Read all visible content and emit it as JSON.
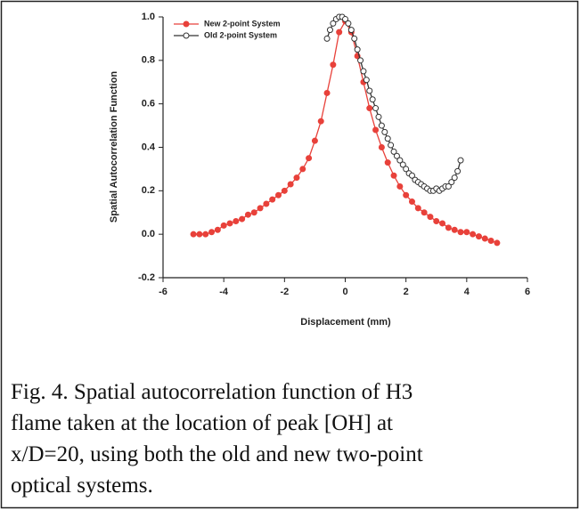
{
  "chart_data": {
    "type": "line",
    "xlabel": "Displacement (mm)",
    "ylabel": "Spatial Autocorrelation Function",
    "xlim": [
      -6,
      6
    ],
    "xticks": [
      -6,
      -4,
      -2,
      0,
      2,
      4,
      6
    ],
    "ylim": [
      -0.2,
      1.0
    ],
    "yticks": [
      -0.2,
      {
        "value": 0,
        "label": "0.0"
      },
      0.2,
      0.4,
      0.6,
      0.8,
      {
        "value": 1,
        "label": "1.0"
      }
    ],
    "legend": "upper left",
    "series": [
      {
        "name": "New 2-point System",
        "color": "#e8413a",
        "marker": "filled",
        "x": [
          -5,
          -4.8,
          -4.6,
          -4.4,
          -4.2,
          -4,
          -3.8,
          -3.6,
          -3.4,
          -3.2,
          -3,
          -2.8,
          -2.6,
          -2.4,
          -2.2,
          -2,
          -1.8,
          -1.6,
          -1.4,
          -1.2,
          -1,
          -0.8,
          -0.6,
          -0.4,
          -0.2,
          0,
          0.2,
          0.4,
          0.6,
          0.8,
          1,
          1.2,
          1.4,
          1.6,
          1.8,
          2,
          2.2,
          2.4,
          2.6,
          2.8,
          3,
          3.2,
          3.4,
          3.6,
          3.8,
          4,
          4.2,
          4.4,
          4.6,
          4.8,
          5
        ],
        "values": [
          0,
          0,
          0,
          0.01,
          0.02,
          0.04,
          0.05,
          0.06,
          0.07,
          0.09,
          0.1,
          0.12,
          0.14,
          0.16,
          0.18,
          0.2,
          0.23,
          0.26,
          0.3,
          0.35,
          0.43,
          0.52,
          0.65,
          0.78,
          0.93,
          0.98,
          0.93,
          0.82,
          0.7,
          0.58,
          0.48,
          0.4,
          0.33,
          0.27,
          0.22,
          0.18,
          0.15,
          0.12,
          0.1,
          0.08,
          0.06,
          0.05,
          0.03,
          0.02,
          0.01,
          0.01,
          0,
          -0.01,
          -0.02,
          -0.03,
          -0.04
        ]
      },
      {
        "name": "Old 2-point System",
        "color": "#333333",
        "marker": "open",
        "x": [
          -0.6,
          -0.5,
          -0.4,
          -0.3,
          -0.2,
          -0.1,
          0,
          0.1,
          0.2,
          0.3,
          0.4,
          0.5,
          0.6,
          0.7,
          0.8,
          0.9,
          1,
          1.1,
          1.2,
          1.3,
          1.4,
          1.5,
          1.6,
          1.7,
          1.8,
          1.9,
          2,
          2.1,
          2.2,
          2.3,
          2.4,
          2.5,
          2.6,
          2.7,
          2.8,
          2.9,
          3,
          3.1,
          3.2,
          3.3,
          3.4,
          3.5,
          3.6,
          3.7,
          3.8
        ],
        "values": [
          0.9,
          0.94,
          0.97,
          0.99,
          1,
          1,
          0.99,
          0.97,
          0.94,
          0.9,
          0.85,
          0.8,
          0.75,
          0.71,
          0.66,
          0.62,
          0.58,
          0.54,
          0.5,
          0.47,
          0.44,
          0.41,
          0.38,
          0.36,
          0.34,
          0.32,
          0.3,
          0.28,
          0.27,
          0.25,
          0.24,
          0.23,
          0.22,
          0.21,
          0.2,
          0.2,
          0.21,
          0.2,
          0.21,
          0.22,
          0.22,
          0.24,
          0.26,
          0.29,
          0.34
        ]
      }
    ]
  },
  "caption": [
    "Fig. 4. Spatial autocorrelation function of H3",
    "flame  taken at the location of peak [OH] at",
    "x/D=20, using both the old and new two-point",
    "optical systems."
  ]
}
